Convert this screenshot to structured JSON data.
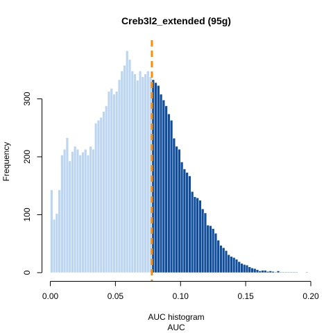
{
  "chart_data": {
    "type": "bar",
    "title": "Creb3l2_extended (95g)",
    "xlabel": "AUC histogram",
    "xlabel2": "AUC",
    "ylabel": "Frequency",
    "xlim": [
      0.0,
      0.2
    ],
    "ylim": [
      0,
      385
    ],
    "xticks": [
      "0.00",
      "0.05",
      "0.10",
      "0.15",
      "0.20"
    ],
    "xtick_values": [
      0.0,
      0.05,
      0.1,
      0.15,
      0.2
    ],
    "yticks": [
      "0",
      "100",
      "200",
      "300"
    ],
    "ytick_values": [
      0,
      100,
      200,
      300
    ],
    "bin_start": 0.0,
    "bin_width": 0.002,
    "threshold": 0.078,
    "colors": {
      "below_threshold": "#bcd6f2",
      "above_threshold": "#104e9c",
      "threshold_line": "#ff8c00"
    },
    "values": [
      143,
      92,
      102,
      143,
      203,
      213,
      233,
      193,
      209,
      218,
      213,
      203,
      208,
      213,
      203,
      218,
      213,
      258,
      263,
      268,
      278,
      288,
      313,
      318,
      308,
      313,
      333,
      348,
      358,
      383,
      368,
      348,
      343,
      332,
      348,
      338,
      343,
      348,
      338,
      333,
      328,
      323,
      308,
      298,
      288,
      274,
      263,
      232,
      218,
      213,
      191,
      179,
      173,
      167,
      140,
      131,
      129,
      125,
      110,
      103,
      82,
      81,
      76,
      68,
      56,
      47,
      43,
      38,
      31,
      28,
      26,
      23,
      19,
      16,
      14,
      13,
      10,
      8,
      7,
      5,
      3,
      4,
      4,
      2,
      3,
      2,
      1,
      3,
      1,
      1,
      1,
      1,
      1,
      1,
      1,
      0,
      0,
      0,
      1
    ]
  }
}
